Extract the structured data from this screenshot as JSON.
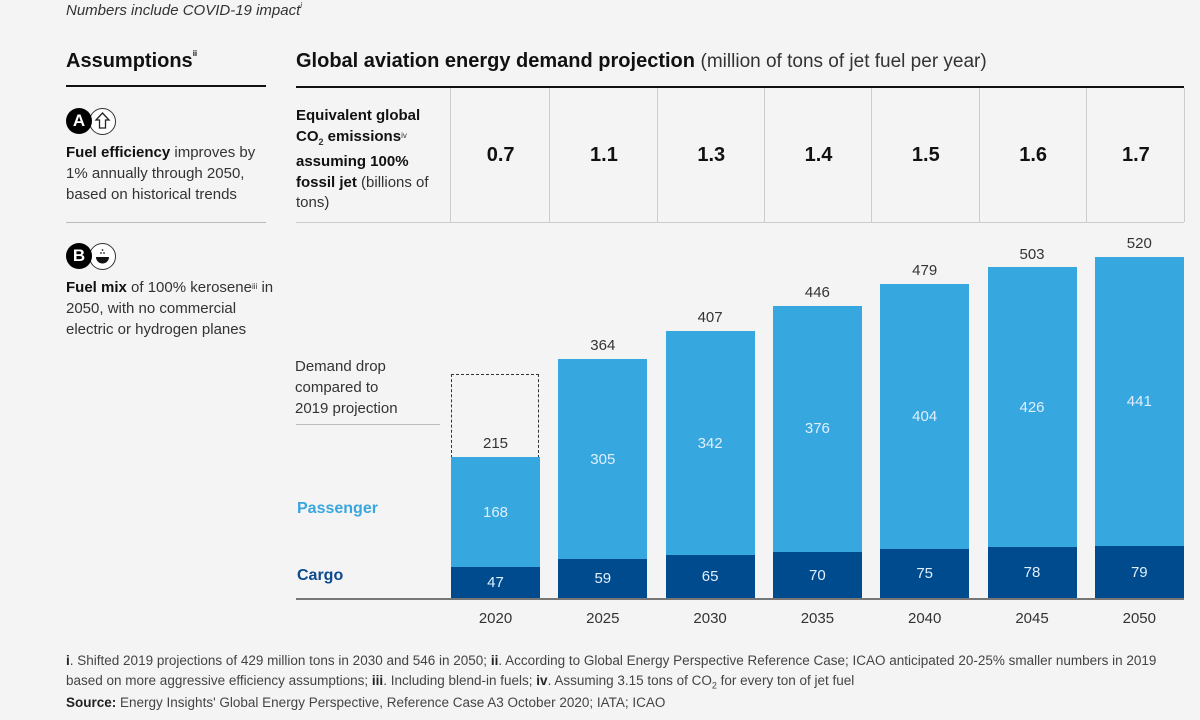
{
  "note": {
    "text": "Numbers include COVID-19 impact",
    "sup": "i"
  },
  "assumptions": {
    "title": "Assumptions",
    "title_sup": "ii",
    "items": [
      {
        "badge": "A",
        "icon": "arrow-up-icon",
        "bold": "Fuel efficiency",
        "text": " improves by 1% annually through 2050, based on historical trends"
      },
      {
        "badge": "B",
        "icon": "fuel-drop-icon",
        "bold": "Fuel mix",
        "text_pre": " of 100% kerosene",
        "sup": "iii",
        "text_post": " in 2050, with no commercial electric or hydrogen planes"
      }
    ]
  },
  "chart_title": {
    "bold": "Global aviation energy demand projection",
    "unit": "(million of tons of jet fuel per year)"
  },
  "co2_row": {
    "label_bold_1": "Equivalent global CO",
    "label_sub": "2",
    "label_bold_2": " emissions",
    "label_sup": "iv",
    "label_bold_3": " assuming 100% fossil jet",
    "label_rest": " (billions of tons)",
    "values": [
      "0.7",
      "1.1",
      "1.3",
      "1.4",
      "1.5",
      "1.6",
      "1.7"
    ]
  },
  "annotation": {
    "demand_drop": [
      "Demand drop",
      "compared to",
      "2019 projection"
    ]
  },
  "legend": {
    "passenger": "Passenger",
    "cargo": "Cargo"
  },
  "colors": {
    "passenger": "#37a7df",
    "cargo": "#004b8d"
  },
  "chart_data": {
    "type": "bar",
    "stacked": true,
    "title": "Global aviation energy demand projection",
    "ylabel": "million of tons of jet fuel per year",
    "categories": [
      "2020",
      "2025",
      "2030",
      "2035",
      "2040",
      "2045",
      "2050"
    ],
    "series": [
      {
        "name": "Cargo",
        "values": [
          47,
          59,
          65,
          70,
          75,
          78,
          79
        ]
      },
      {
        "name": "Passenger",
        "values": [
          168,
          305,
          342,
          376,
          404,
          426,
          441
        ]
      }
    ],
    "totals": [
      215,
      364,
      407,
      446,
      479,
      503,
      520
    ],
    "dashed_projection_2020": 342,
    "ylim": [
      0,
      520
    ],
    "grid": false,
    "legend_placement": "left"
  },
  "footnotes": {
    "i_mark": "i",
    "i_text": ". Shifted 2019 projections of 429 million tons in 2030 and 546 in 2050;  ",
    "ii_mark": "ii",
    "ii_text": ". According to Global Energy Perspective Reference Case; ICAO anticipated 20-25% smaller numbers in 2019 based on more aggressive efficiency assumptions;  ",
    "iii_mark": "iii",
    "iii_text": ". Including blend-in fuels;  ",
    "iv_mark": "iv",
    "iv_text_1": ". Assuming 3.15 tons of CO",
    "iv_sub": "2",
    "iv_text_2": " for every ton of jet fuel"
  },
  "source": {
    "label": "Source:",
    "text": " Energy Insights' Global Energy Perspective, Reference Case A3 October 2020; IATA; ICAO"
  }
}
